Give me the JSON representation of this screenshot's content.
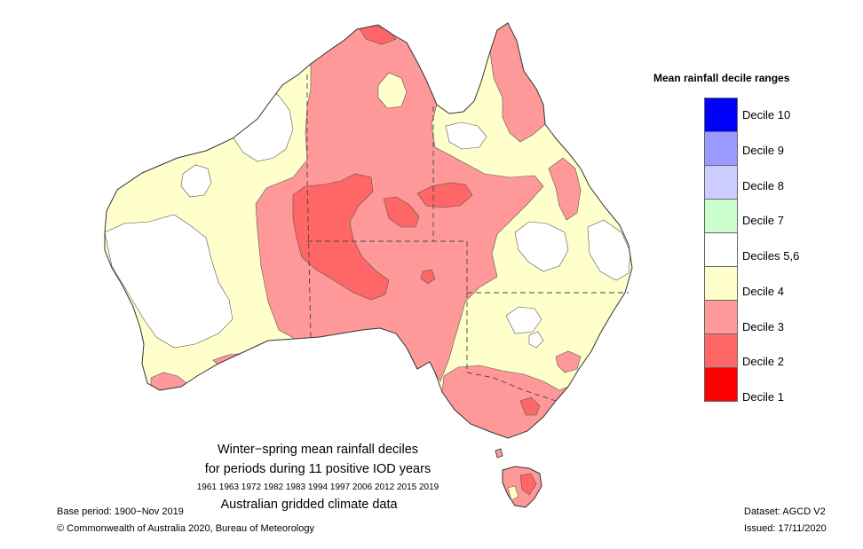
{
  "title_line1": "Winter−spring mean rainfall deciles",
  "title_line2": "for periods during 11 positive IOD years",
  "years": "1961 1963 1972 1982 1983 1994 1997 2006 2012 2015 2019",
  "title_line4": "Australian gridded climate data",
  "base_period": "Base period: 1900−Nov 2019",
  "copyright": "© Commonwealth of Australia 2020, Bureau of Meteorology",
  "dataset": "Dataset: AGCD V2",
  "issued": "Issued: 17/11/2020",
  "legend": {
    "title": "Mean rainfall decile ranges",
    "items": [
      {
        "label": "Decile 10",
        "color": "#0000ff"
      },
      {
        "label": "Decile 9",
        "color": "#9999ff"
      },
      {
        "label": "Decile 8",
        "color": "#ccccff"
      },
      {
        "label": "Decile 7",
        "color": "#ccffcc"
      },
      {
        "label": "Deciles 5,6",
        "color": "#ffffff"
      },
      {
        "label": "Decile 4",
        "color": "#ffffcc"
      },
      {
        "label": "Decile 3",
        "color": "#ff9999"
      },
      {
        "label": "Decile 2",
        "color": "#ff6666"
      },
      {
        "label": "Decile 1",
        "color": "#ff0000"
      }
    ]
  }
}
